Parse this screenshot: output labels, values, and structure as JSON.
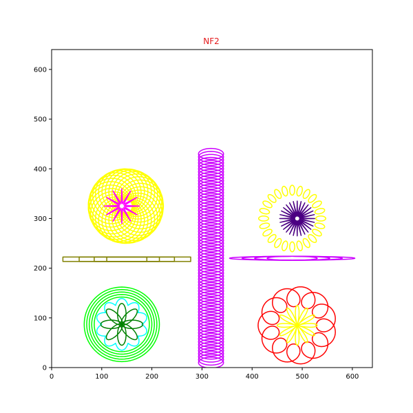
{
  "chart_data": {
    "type": "line",
    "title": "NF2",
    "title_color": "#e41a1c",
    "xlabel": "",
    "ylabel": "",
    "xlim": [
      0,
      640
    ],
    "ylim": [
      0,
      640
    ],
    "x_ticks": [
      0,
      100,
      200,
      300,
      400,
      500,
      600
    ],
    "y_ticks": [
      0,
      100,
      200,
      300,
      400,
      500,
      600
    ],
    "grid": false,
    "legend": "none",
    "series": [
      {
        "shape": "spiro",
        "color": "#ffff00",
        "center": [
          148,
          325
        ],
        "R": 75,
        "r": 44,
        "k": 28,
        "rings": 1
      },
      {
        "shape": "star",
        "color": "#ff00ff",
        "center": [
          140,
          325
        ],
        "outer": 35,
        "inner": 5,
        "points": 12
      },
      {
        "shape": "flower",
        "color": "#ffff00",
        "center": [
          480,
          300
        ],
        "R": 57,
        "r": 5,
        "lobes": 24,
        "loop_len": 20
      },
      {
        "shape": "star",
        "color": "#4b0082",
        "center": [
          490,
          300
        ],
        "outer": 35,
        "inner": 5,
        "points": 28
      },
      {
        "shape": "rect_stack",
        "color": "#808000",
        "center": [
          150,
          218
        ],
        "widths": [
          255,
          190,
          130,
          80
        ],
        "height": 9
      },
      {
        "shape": "column",
        "color": "#cc00ff",
        "center": [
          318,
          225
        ],
        "width": 50,
        "y_min": 10,
        "y_max": 435
      },
      {
        "shape": "lens_stack",
        "color": "#cc00ff",
        "center": [
          480,
          220
        ],
        "half_widths": [
          125,
          100,
          75,
          50
        ],
        "half_height": 4
      },
      {
        "shape": "circles",
        "color": "#00ff00",
        "center": [
          140,
          87
        ],
        "radii": [
          75,
          70,
          65,
          60,
          55
        ]
      },
      {
        "shape": "scallop",
        "color": "#00ffff",
        "center": [
          140,
          87
        ],
        "R": 40,
        "lobes": 10,
        "lobe_r": 12
      },
      {
        "shape": "petals",
        "color": "#008000",
        "center": [
          140,
          87
        ],
        "count": 8,
        "length": 42,
        "width": 17
      },
      {
        "shape": "loop_ring",
        "color": "#ff0000",
        "center": [
          490,
          85
        ],
        "R": 58,
        "loop_r": 20,
        "count": 12
      },
      {
        "shape": "petal_star",
        "color": "#ffff00",
        "center": [
          490,
          85
        ],
        "outer": 40,
        "points": 12
      }
    ]
  }
}
